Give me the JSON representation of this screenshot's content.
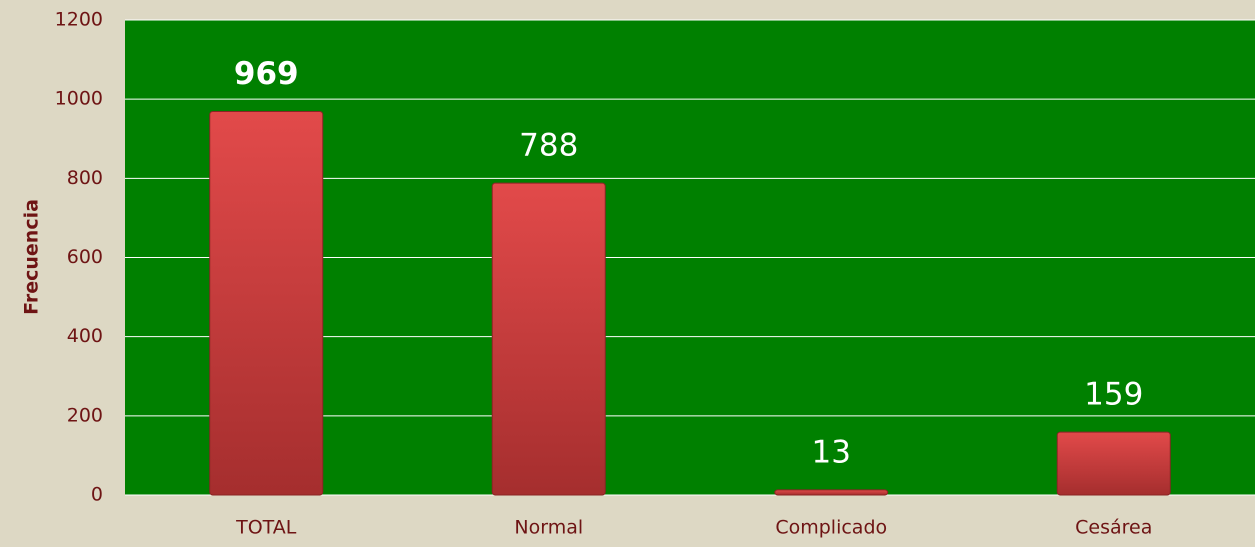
{
  "chart_data": {
    "type": "bar",
    "y_label": "Frecuencia",
    "categories": [
      "TOTAL",
      "Normal",
      "Complicado",
      "Cesárea"
    ],
    "values": [
      969,
      788,
      13,
      159
    ],
    "color": "#d84242",
    "ylim": [
      0,
      1200
    ],
    "yticks": [
      0,
      200,
      400,
      600,
      800,
      1000,
      1200
    ],
    "grid": true
  }
}
